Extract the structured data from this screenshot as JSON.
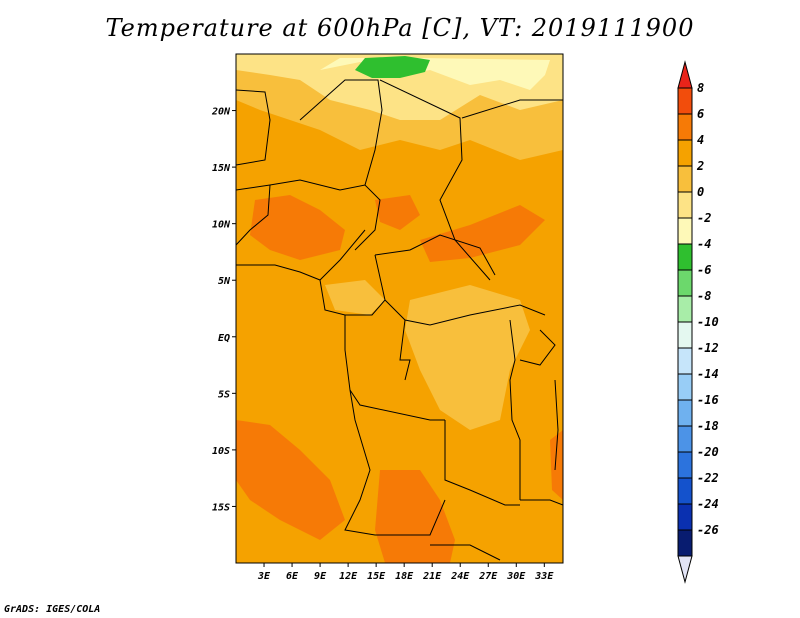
{
  "title": "Temperature at 600hPa [C], VT: 2019111900",
  "credit": "GrADS: IGES/COLA",
  "map": {
    "projection": "lat-lon",
    "lon_range": [
      0,
      35
    ],
    "lat_range": [
      -20,
      25
    ],
    "lon_ticks": [
      "3E",
      "6E",
      "9E",
      "12E",
      "15E",
      "18E",
      "21E",
      "24E",
      "27E",
      "30E",
      "33E"
    ],
    "lat_ticks": [
      "20N",
      "15N",
      "10N",
      "5N",
      "EQ",
      "5S",
      "10S",
      "15S"
    ],
    "background_color": "#f5a200"
  },
  "legend": {
    "labels": [
      "8",
      "6",
      "4",
      "2",
      "0",
      "-2",
      "-4",
      "-6",
      "-8",
      "-10",
      "-12",
      "-14",
      "-16",
      "-18",
      "-20",
      "-22",
      "-24",
      "-26"
    ],
    "colors": [
      "#e8241a",
      "#f24d0c",
      "#f67a06",
      "#f5a200",
      "#f8bf3c",
      "#fde386",
      "#fef9b8",
      "#2fbf2f",
      "#6cd86c",
      "#a8eda8",
      "#e4f8f0",
      "#c6e5fa",
      "#98cdf6",
      "#6fb1ef",
      "#4c93e7",
      "#2c73dd",
      "#1452cc",
      "#0a30b0",
      "#081c70",
      "#e2e4f6"
    ]
  }
}
